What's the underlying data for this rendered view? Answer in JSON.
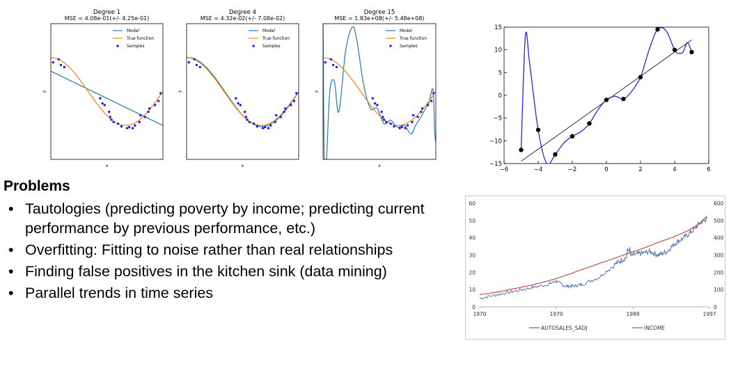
{
  "problems": {
    "title": "Problems",
    "items": [
      "Tautologies (predicting poverty by income; predicting current performance by previous performance, etc.)",
      "Overfitting: Fitting to noise rather than real relationships",
      "Finding false positives in the kitchen sink (data mining)",
      "Parallel trends in time series"
    ]
  },
  "chart_data": [
    {
      "type": "scatter",
      "title": "Degree 1",
      "subtitle": "MSE = 4.08e-01(+/- 4.25e-01)",
      "xlabel": "x",
      "ylabel": "y",
      "xlim": [
        0,
        1
      ],
      "ylim": [
        -2,
        2
      ],
      "legend": [
        "Model",
        "True function",
        "Samples"
      ],
      "legend_position": "top-right",
      "samples": [
        [
          0.02,
          0.86
        ],
        [
          0.07,
          0.95
        ],
        [
          0.09,
          0.78
        ],
        [
          0.12,
          0.72
        ],
        [
          0.44,
          -0.2
        ],
        [
          0.46,
          -0.35
        ],
        [
          0.48,
          -0.4
        ],
        [
          0.52,
          -0.6
        ],
        [
          0.53,
          -0.75
        ],
        [
          0.54,
          -0.83
        ],
        [
          0.56,
          -0.9
        ],
        [
          0.6,
          -0.95
        ],
        [
          0.63,
          -1.03
        ],
        [
          0.68,
          -1.08
        ],
        [
          0.7,
          -1.05
        ],
        [
          0.73,
          -1.08
        ],
        [
          0.75,
          -1.0
        ],
        [
          0.79,
          -0.9
        ],
        [
          0.8,
          -0.7
        ],
        [
          0.84,
          -0.75
        ],
        [
          0.87,
          -0.6
        ],
        [
          0.88,
          -0.5
        ],
        [
          0.93,
          -0.4
        ],
        [
          0.96,
          -0.28
        ],
        [
          0.98,
          -0.05
        ]
      ],
      "model": {
        "degree": 1,
        "coef": [
          0.6,
          -1.6
        ]
      },
      "true_function": "cos(1.5*pi*x)",
      "colors": {
        "model": "#1f77b4",
        "true": "#ff7f0e",
        "samples": "#1f1fee"
      }
    },
    {
      "type": "scatter",
      "title": "Degree 4",
      "subtitle": "MSE = 4.32e-02(+/- 7.08e-02)",
      "xlabel": "x",
      "ylabel": "y",
      "xlim": [
        0,
        1
      ],
      "ylim": [
        -2,
        2
      ],
      "legend": [
        "Model",
        "True function",
        "Samples"
      ],
      "legend_position": "top-right",
      "samples": [
        [
          0.02,
          0.86
        ],
        [
          0.07,
          0.95
        ],
        [
          0.09,
          0.78
        ],
        [
          0.12,
          0.72
        ],
        [
          0.44,
          -0.2
        ],
        [
          0.46,
          -0.35
        ],
        [
          0.48,
          -0.4
        ],
        [
          0.52,
          -0.6
        ],
        [
          0.53,
          -0.75
        ],
        [
          0.54,
          -0.83
        ],
        [
          0.56,
          -0.9
        ],
        [
          0.6,
          -0.95
        ],
        [
          0.63,
          -1.03
        ],
        [
          0.68,
          -1.08
        ],
        [
          0.7,
          -1.05
        ],
        [
          0.73,
          -1.08
        ],
        [
          0.75,
          -1.0
        ],
        [
          0.79,
          -0.9
        ],
        [
          0.8,
          -0.7
        ],
        [
          0.84,
          -0.75
        ],
        [
          0.87,
          -0.6
        ],
        [
          0.88,
          -0.5
        ],
        [
          0.93,
          -0.4
        ],
        [
          0.96,
          -0.28
        ],
        [
          0.98,
          -0.05
        ]
      ],
      "model": {
        "degree": 4,
        "follows": "true_function"
      },
      "true_function": "cos(1.5*pi*x)",
      "colors": {
        "model": "#1f77b4",
        "true": "#ff7f0e",
        "samples": "#1f1fee"
      }
    },
    {
      "type": "scatter",
      "title": "Degree 15",
      "subtitle": "MSE = 1.83e+08(+/- 5.48e+08)",
      "xlabel": "x",
      "ylabel": "y",
      "xlim": [
        0,
        1
      ],
      "ylim": [
        -2,
        2
      ],
      "legend": [
        "Model",
        "True function",
        "Samples"
      ],
      "legend_position": "top-right",
      "samples": [
        [
          0.02,
          0.86
        ],
        [
          0.07,
          0.95
        ],
        [
          0.09,
          0.78
        ],
        [
          0.12,
          0.72
        ],
        [
          0.44,
          -0.2
        ],
        [
          0.46,
          -0.35
        ],
        [
          0.48,
          -0.4
        ],
        [
          0.52,
          -0.6
        ],
        [
          0.53,
          -0.75
        ],
        [
          0.54,
          -0.83
        ],
        [
          0.56,
          -0.9
        ],
        [
          0.6,
          -0.95
        ],
        [
          0.63,
          -1.03
        ],
        [
          0.68,
          -1.08
        ],
        [
          0.7,
          -1.05
        ],
        [
          0.73,
          -1.08
        ],
        [
          0.75,
          -1.0
        ],
        [
          0.79,
          -0.9
        ],
        [
          0.8,
          -0.7
        ],
        [
          0.84,
          -0.75
        ],
        [
          0.87,
          -0.6
        ],
        [
          0.88,
          -0.5
        ],
        [
          0.93,
          -0.4
        ],
        [
          0.96,
          -0.28
        ],
        [
          0.98,
          -0.05
        ]
      ],
      "model": {
        "degree": 15,
        "wiggly": true
      },
      "true_function": "cos(1.5*pi*x)",
      "colors": {
        "model": "#1f77b4",
        "true": "#ff7f0e",
        "samples": "#1f1fee"
      }
    },
    {
      "type": "scatter",
      "xlim": [
        -6,
        6
      ],
      "ylim": [
        -15,
        15
      ],
      "xticks": [
        -6,
        -4,
        -2,
        0,
        2,
        4,
        6
      ],
      "yticks": [
        -15,
        -10,
        -5,
        0,
        5,
        10,
        15
      ],
      "points": [
        [
          -5,
          -12
        ],
        [
          -4,
          -7.6
        ],
        [
          -3,
          -13
        ],
        [
          -2,
          -9
        ],
        [
          -1,
          -6.2
        ],
        [
          0,
          -1
        ],
        [
          1,
          -0.8
        ],
        [
          2,
          4
        ],
        [
          3,
          14.5
        ],
        [
          4,
          10
        ],
        [
          5,
          9.5
        ]
      ],
      "fit_line": [
        [
          -5,
          -14.5
        ],
        [
          5,
          12.2
        ]
      ],
      "curve_knots": [
        [
          -5,
          -12
        ],
        [
          -4.75,
          13
        ],
        [
          -4.5,
          7
        ],
        [
          -4,
          -7.6
        ],
        [
          -3.5,
          -15
        ],
        [
          -3,
          -13
        ],
        [
          -2.5,
          -10.5
        ],
        [
          -2,
          -9
        ],
        [
          -1.5,
          -8
        ],
        [
          -1,
          -6.2
        ],
        [
          -0.5,
          -3.2
        ],
        [
          0,
          -1
        ],
        [
          0.5,
          -0.2
        ],
        [
          1,
          -0.8
        ],
        [
          1.5,
          1
        ],
        [
          2,
          4
        ],
        [
          2.5,
          10
        ],
        [
          3,
          14.5
        ],
        [
          3.5,
          14.2
        ],
        [
          4,
          10
        ],
        [
          4.25,
          9.2
        ],
        [
          4.5,
          9.6
        ],
        [
          4.75,
          11.6
        ],
        [
          5,
          9.5
        ]
      ],
      "colors": {
        "curve": "#3b1bdb",
        "line": "#333333",
        "points": "#000000"
      }
    },
    {
      "type": "line",
      "x_range": [
        1970,
        1997
      ],
      "xticks": [
        "1970",
        "1979",
        "1988",
        "1997"
      ],
      "y_left": {
        "ticks": [
          "0",
          "10",
          "20",
          "30",
          "40",
          "50",
          "60"
        ],
        "lim": [
          0,
          60
        ]
      },
      "y_right": {
        "ticks": [
          "0",
          "100",
          "200",
          "300",
          "400",
          "500",
          "600"
        ],
        "lim": [
          0,
          600
        ]
      },
      "legend_position": "bottom",
      "series": [
        {
          "name": "AUTOSALES_SADJ",
          "axis": "left",
          "color": "#4f72b8",
          "points": [
            [
              1970,
              5
            ],
            [
              1972,
              7
            ],
            [
              1974,
              9
            ],
            [
              1976,
              11
            ],
            [
              1978,
              13
            ],
            [
              1979,
              15
            ],
            [
              1980,
              12
            ],
            [
              1981,
              12
            ],
            [
              1982,
              13
            ],
            [
              1984,
              17
            ],
            [
              1986,
              25
            ],
            [
              1987,
              28
            ],
            [
              1988,
              30
            ],
            [
              1989,
              31
            ],
            [
              1990,
              32
            ],
            [
              1991,
              30
            ],
            [
              1992,
              32
            ],
            [
              1993,
              37
            ],
            [
              1994,
              40
            ],
            [
              1995,
              44
            ],
            [
              1996,
              49
            ],
            [
              1996.7,
              51
            ]
          ]
        },
        {
          "name": "INCOME",
          "axis": "right",
          "color": "#c0504d",
          "points": [
            [
              1970,
              70
            ],
            [
              1972,
              85
            ],
            [
              1974,
              105
            ],
            [
              1976,
              125
            ],
            [
              1978,
              150
            ],
            [
              1980,
              180
            ],
            [
              1982,
              215
            ],
            [
              1984,
              250
            ],
            [
              1986,
              285
            ],
            [
              1988,
              320
            ],
            [
              1990,
              355
            ],
            [
              1992,
              390
            ],
            [
              1994,
              430
            ],
            [
              1995,
              455
            ],
            [
              1996,
              490
            ],
            [
              1996.7,
              525
            ]
          ]
        }
      ]
    }
  ]
}
